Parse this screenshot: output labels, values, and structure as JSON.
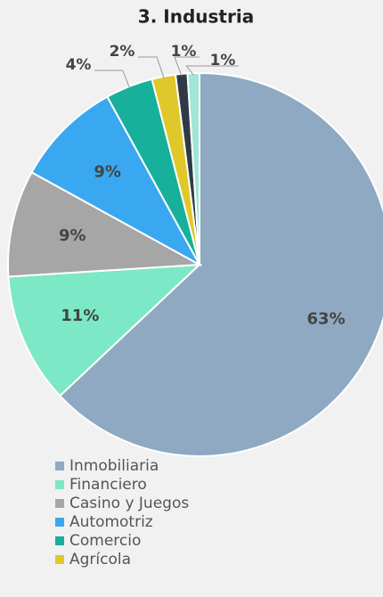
{
  "chart_data": {
    "type": "pie",
    "title": "3. Industria",
    "categories": [
      "Inmobiliaria",
      "Financiero",
      "Casino y Juegos",
      "Automotriz",
      "Comercio",
      "Agrícola",
      null,
      null
    ],
    "values": [
      63,
      11,
      9,
      9,
      4,
      2,
      1,
      1
    ],
    "value_labels": [
      "63%",
      "11%",
      "9%",
      "9%",
      "4%",
      "2%",
      "1%",
      "1%"
    ],
    "colors": [
      "#8ea9c1",
      "#7de8c5",
      "#a6a6a6",
      "#3aa8f0",
      "#17b09a",
      "#e0c82a",
      "#2f3a45",
      "#9ee6d6"
    ]
  }
}
